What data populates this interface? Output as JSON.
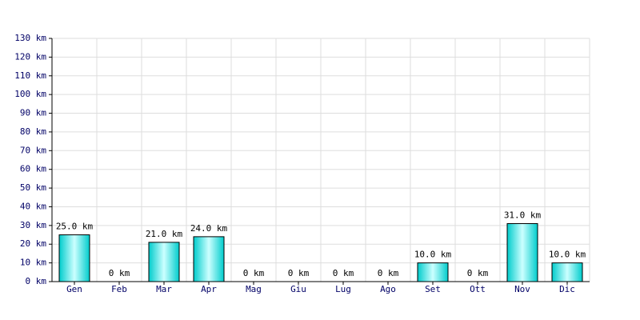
{
  "chart_data": {
    "type": "bar",
    "categories": [
      "Gen",
      "Feb",
      "Mar",
      "Apr",
      "Mag",
      "Giu",
      "Lug",
      "Ago",
      "Set",
      "Ott",
      "Nov",
      "Dic"
    ],
    "values": [
      25,
      0,
      21,
      24,
      0,
      0,
      0,
      0,
      10,
      0,
      31,
      10
    ],
    "value_labels": [
      "25.0 km",
      "0 km",
      "21.0 km",
      "24.0 km",
      "0 km",
      "0 km",
      "0 km",
      "0 km",
      "10.0 km",
      "0 km",
      "31.0 km",
      "10.0 km"
    ],
    "color": "#00cccc",
    "ylim": [
      0,
      130
    ],
    "yticks": [
      {
        "value": 0,
        "label": "0 km"
      },
      {
        "value": 10,
        "label": "10 km"
      },
      {
        "value": 20,
        "label": "20 km"
      },
      {
        "value": 30,
        "label": "30 km"
      },
      {
        "value": 40,
        "label": "40 km"
      },
      {
        "value": 50,
        "label": "50 km"
      },
      {
        "value": 60,
        "label": "60 km"
      },
      {
        "value": 70,
        "label": "70 km"
      },
      {
        "value": 80,
        "label": "80 km"
      },
      {
        "value": 90,
        "label": "90 km"
      },
      {
        "value": 100,
        "label": "100 km"
      },
      {
        "value": 110,
        "label": "110 km"
      },
      {
        "value": 120,
        "label": "120 km"
      },
      {
        "value": 130,
        "label": "130 km"
      }
    ],
    "grid": true
  }
}
